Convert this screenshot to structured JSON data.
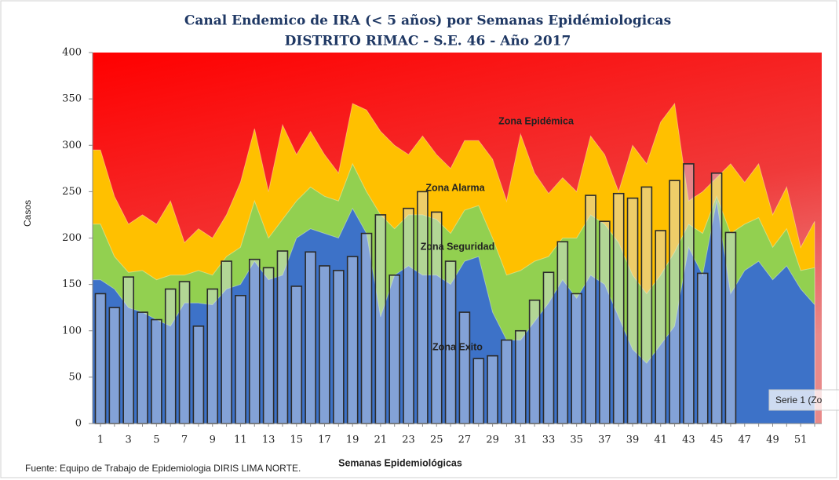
{
  "chart_data": {
    "type": "endemic",
    "title": "Canal Endemico de IRA (< 5 años) por Semanas Epidémiologicas",
    "subtitle": "DISTRITO RIMAC - S.E. 46 - Año 2017",
    "y_label": "Casos",
    "x_label": "Semanas  Epidemiológicas",
    "source": "Fuente: Equipo de Trabajo de Epidemiologia DIRIS LIMA NORTE.",
    "annotations": [
      "Zona Epidémica",
      "Serie 1 (Zo"
    ],
    "categories": [
      1,
      null,
      3,
      null,
      5,
      null,
      7,
      null,
      9,
      null,
      11,
      null,
      13,
      null,
      15,
      null,
      17,
      null,
      19,
      null,
      21,
      null,
      23,
      null,
      25,
      null,
      27,
      null,
      29,
      null,
      31,
      null,
      33,
      null,
      35,
      null,
      37,
      null,
      39,
      null,
      41,
      null,
      43,
      null,
      45,
      null,
      47,
      null,
      49,
      null,
      51,
      null
    ],
    "ylim": [
      0,
      400
    ],
    "yticks": [
      0,
      50,
      100,
      150,
      200,
      250,
      300,
      350,
      400
    ],
    "background_color": "#ff0000",
    "series": [
      {
        "name": "Zona Exito",
        "color": "#3d72c8",
        "values": [
          155,
          145,
          125,
          120,
          112,
          105,
          130,
          130,
          128,
          145,
          150,
          175,
          155,
          160,
          200,
          210,
          205,
          200,
          232,
          205,
          115,
          160,
          170,
          160,
          160,
          150,
          175,
          180,
          120,
          90,
          90,
          110,
          130,
          155,
          135,
          160,
          150,
          115,
          80,
          65,
          85,
          105,
          190,
          160,
          240,
          140,
          165,
          175,
          155,
          170,
          145,
          128
        ]
      },
      {
        "name": "Zona Seguridad",
        "color": "#92d050",
        "values": [
          60,
          35,
          38,
          45,
          43,
          55,
          30,
          35,
          32,
          35,
          40,
          65,
          45,
          60,
          40,
          45,
          40,
          40,
          48,
          45,
          110,
          50,
          55,
          65,
          60,
          55,
          55,
          55,
          80,
          70,
          75,
          65,
          50,
          45,
          65,
          65,
          65,
          80,
          80,
          75,
          75,
          80,
          25,
          45,
          5,
          65,
          50,
          47,
          35,
          40,
          20,
          40
        ]
      },
      {
        "name": "Zona Alarma",
        "color": "#ffc000",
        "values": [
          80,
          65,
          52,
          60,
          60,
          80,
          35,
          45,
          40,
          45,
          70,
          78,
          50,
          102,
          50,
          60,
          45,
          30,
          65,
          88,
          90,
          90,
          65,
          85,
          70,
          70,
          75,
          70,
          85,
          80,
          147,
          95,
          68,
          65,
          50,
          85,
          75,
          55,
          140,
          140,
          165,
          160,
          25,
          45,
          20,
          75,
          45,
          58,
          35,
          45,
          25,
          50
        ]
      }
    ],
    "bars": {
      "color": "#d9dee8",
      "values": [
        140,
        125,
        158,
        120,
        112,
        145,
        153,
        105,
        145,
        175,
        138,
        177,
        168,
        186,
        148,
        185,
        170,
        165,
        180,
        205,
        225,
        160,
        232,
        250,
        228,
        175,
        120,
        70,
        73,
        90,
        100,
        133,
        163,
        196,
        140,
        246,
        218,
        248,
        243,
        255,
        208,
        262,
        280,
        162,
        270,
        206,
        null,
        null,
        null,
        null,
        null,
        null
      ]
    }
  }
}
